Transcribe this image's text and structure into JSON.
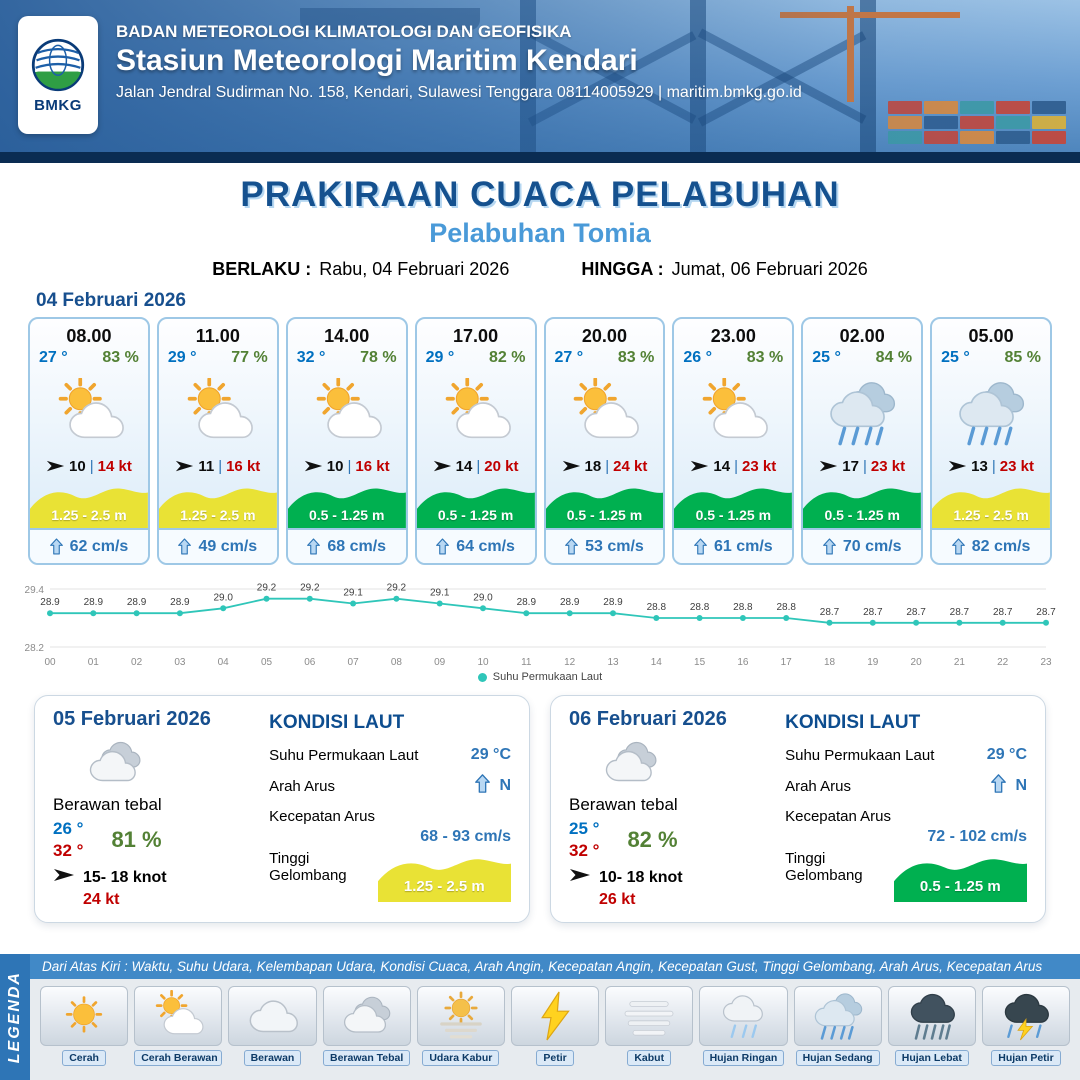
{
  "header": {
    "agency": "BADAN METEOROLOGI KLIMATOLOGI DAN GEOFISIKA",
    "station": "Stasiun Meteorologi Maritim Kendari",
    "address": "Jalan Jendral Sudirman No. 158, Kendari, Sulawesi Tenggara  08114005929 | maritim.bmkg.go.id",
    "logo_text": "BMKG"
  },
  "title": {
    "main": "PRAKIRAAN CUACA PELABUHAN",
    "port": "Pelabuhan Tomia",
    "valid_label": "BERLAKU :",
    "valid_value": "Rabu, 04 Februari 2026",
    "until_label": "HINGGA :",
    "until_value": "Jumat, 06 Februari 2026"
  },
  "forecast_date": "04 Februari 2026",
  "ui": {
    "wind_separator": "|"
  },
  "forecast_cards": [
    {
      "time": "08.00",
      "temp": "27 °",
      "humidity": "83 %",
      "icon": "cerah-berawan",
      "wind": "10",
      "gust": "14 kt",
      "wave": "1.25 - 2.5 m",
      "wave_level": "moderate",
      "current": "62 cm/s"
    },
    {
      "time": "11.00",
      "temp": "29 °",
      "humidity": "77 %",
      "icon": "cerah-berawan",
      "wind": "11",
      "gust": "16 kt",
      "wave": "1.25 - 2.5 m",
      "wave_level": "moderate",
      "current": "49 cm/s"
    },
    {
      "time": "14.00",
      "temp": "32 °",
      "humidity": "78 %",
      "icon": "cerah-berawan",
      "wind": "10",
      "gust": "16 kt",
      "wave": "0.5 - 1.25 m",
      "wave_level": "low",
      "current": "68 cm/s"
    },
    {
      "time": "17.00",
      "temp": "29 °",
      "humidity": "82 %",
      "icon": "cerah-berawan",
      "wind": "14",
      "gust": "20 kt",
      "wave": "0.5 - 1.25 m",
      "wave_level": "low",
      "current": "64 cm/s"
    },
    {
      "time": "20.00",
      "temp": "27 °",
      "humidity": "83 %",
      "icon": "cerah-berawan",
      "wind": "18",
      "gust": "24 kt",
      "wave": "0.5 - 1.25 m",
      "wave_level": "low",
      "current": "53 cm/s"
    },
    {
      "time": "23.00",
      "temp": "26 °",
      "humidity": "83 %",
      "icon": "cerah-berawan",
      "wind": "14",
      "gust": "23 kt",
      "wave": "0.5 - 1.25 m",
      "wave_level": "low",
      "current": "61 cm/s"
    },
    {
      "time": "02.00",
      "temp": "25 °",
      "humidity": "84 %",
      "icon": "hujan-sedang",
      "wind": "17",
      "gust": "23 kt",
      "wave": "0.5 - 1.25 m",
      "wave_level": "low",
      "current": "70 cm/s"
    },
    {
      "time": "05.00",
      "temp": "25 °",
      "humidity": "85 %",
      "icon": "hujan-sedang",
      "wind": "13",
      "gust": "23 kt",
      "wave": "1.25 - 2.5 m",
      "wave_level": "moderate",
      "current": "82 cm/s"
    }
  ],
  "chart_data": {
    "type": "line",
    "title": "",
    "x": [
      "00",
      "01",
      "02",
      "03",
      "04",
      "05",
      "06",
      "07",
      "08",
      "09",
      "10",
      "11",
      "12",
      "13",
      "14",
      "15",
      "16",
      "17",
      "18",
      "19",
      "20",
      "21",
      "22",
      "23"
    ],
    "values": [
      28.9,
      28.9,
      28.9,
      28.9,
      29.0,
      29.2,
      29.2,
      29.1,
      29.2,
      29.1,
      29.0,
      28.9,
      28.9,
      28.9,
      28.8,
      28.8,
      28.8,
      28.8,
      28.7,
      28.7,
      28.7,
      28.7,
      28.7,
      28.7
    ],
    "ylim": [
      28.2,
      29.4
    ],
    "xlabel": "",
    "ylabel": "",
    "grid": true,
    "legend": "Suhu Permukaan Laut",
    "legend_position": "bottom",
    "line_color": "#2fc6b9"
  },
  "sea_labels": {
    "title": "KONDISI LAUT",
    "sst": "Suhu Permukaan Laut",
    "dir": "Arah Arus",
    "speed": "Kecepatan Arus",
    "wave": "Tinggi Gelombang"
  },
  "daily_cards": [
    {
      "date": "05 Februari 2026",
      "condition": "Berawan tebal",
      "icon": "berawan-tebal",
      "temp_min": "26 °",
      "temp_max": "32 °",
      "humidity": "81 %",
      "wind_range": "15- 18 knot",
      "gust": "24 kt",
      "sst": "29 °C",
      "current_dir": "N",
      "current_speed": "68 - 93 cm/s",
      "wave": "1.25 - 2.5 m",
      "wave_level": "moderate"
    },
    {
      "date": "06 Februari 2026",
      "condition": "Berawan tebal",
      "icon": "berawan-tebal",
      "temp_min": "25 °",
      "temp_max": "32 °",
      "humidity": "82 %",
      "wind_range": "10- 18 knot",
      "gust": "26 kt",
      "sst": "29 °C",
      "current_dir": "N",
      "current_speed": "72 - 102 cm/s",
      "wave": "0.5 - 1.25 m",
      "wave_level": "low"
    }
  ],
  "legend": {
    "title": "LEGENDA",
    "note": "Dari Atas Kiri : Waktu, Suhu Udara, Kelembapan Udara, Kondisi Cuaca, Arah Angin, Kecepatan Angin, Kecepatan Gust, Tinggi Gelombang, Arah Arus, Kecepatan Arus",
    "items": [
      {
        "icon": "cerah",
        "label": "Cerah"
      },
      {
        "icon": "cerah-berawan",
        "label": "Cerah Berawan"
      },
      {
        "icon": "berawan",
        "label": "Berawan"
      },
      {
        "icon": "berawan-tebal",
        "label": "Berawan Tebal"
      },
      {
        "icon": "udara-kabur",
        "label": "Udara Kabur"
      },
      {
        "icon": "petir",
        "label": "Petir"
      },
      {
        "icon": "kabut",
        "label": "Kabut"
      },
      {
        "icon": "hujan-ringan",
        "label": "Hujan Ringan"
      },
      {
        "icon": "hujan-sedang",
        "label": "Hujan Sedang"
      },
      {
        "icon": "hujan-lebat",
        "label": "Hujan Lebat"
      },
      {
        "icon": "hujan-petir",
        "label": "Hujan Petir"
      }
    ]
  },
  "colors": {
    "wave_low": "#00b050",
    "wave_moderate": "#e9e235",
    "accent_blue": "#2e75b6",
    "temp_blue": "#0070c0",
    "temp_red": "#c00000",
    "humidity_green": "#538135",
    "chart_line": "#2fc6b9"
  }
}
